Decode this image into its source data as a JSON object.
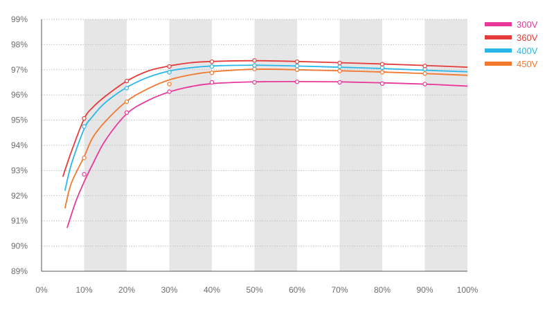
{
  "chart_data": {
    "type": "line",
    "title": "",
    "xlabel": "",
    "ylabel": "",
    "xlim": [
      0,
      100
    ],
    "ylim": [
      89,
      99
    ],
    "x_ticks": [
      "0%",
      "10%",
      "20%",
      "30%",
      "40%",
      "50%",
      "60%",
      "70%",
      "80%",
      "90%",
      "100%"
    ],
    "y_ticks": [
      "89%",
      "90%",
      "91%",
      "92%",
      "93%",
      "94%",
      "95%",
      "96%",
      "97%",
      "98%",
      "99%"
    ],
    "grid": "horizontal dotted lines, alternating gray vertical bands",
    "legend_position": "top-right",
    "series": [
      {
        "name": "300V",
        "color": "#e8389a",
        "line": [
          [
            6,
            90.72
          ],
          [
            8,
            91.75
          ],
          [
            10,
            92.55
          ],
          [
            12,
            93.25
          ],
          [
            15,
            94.2
          ],
          [
            20,
            95.25
          ],
          [
            25,
            95.78
          ],
          [
            30,
            96.12
          ],
          [
            35,
            96.33
          ],
          [
            40,
            96.45
          ],
          [
            50,
            96.52
          ],
          [
            60,
            96.53
          ],
          [
            70,
            96.52
          ],
          [
            80,
            96.48
          ],
          [
            90,
            96.43
          ],
          [
            100,
            96.35
          ]
        ],
        "markers": [
          [
            10,
            92.85
          ],
          [
            20,
            95.3
          ],
          [
            30,
            96.13
          ],
          [
            40,
            96.5
          ],
          [
            50,
            96.5
          ],
          [
            60,
            96.52
          ],
          [
            70,
            96.5
          ],
          [
            80,
            96.45
          ],
          [
            90,
            96.43
          ]
        ]
      },
      {
        "name": "360V",
        "color": "#e53a3a",
        "line": [
          [
            5,
            92.75
          ],
          [
            7,
            93.75
          ],
          [
            10,
            95.05
          ],
          [
            12,
            95.5
          ],
          [
            15,
            95.95
          ],
          [
            20,
            96.55
          ],
          [
            25,
            96.95
          ],
          [
            30,
            97.15
          ],
          [
            35,
            97.28
          ],
          [
            40,
            97.33
          ],
          [
            50,
            97.36
          ],
          [
            60,
            97.33
          ],
          [
            70,
            97.28
          ],
          [
            80,
            97.23
          ],
          [
            90,
            97.17
          ],
          [
            100,
            97.1
          ]
        ],
        "markers": [
          [
            10,
            95.07
          ],
          [
            20,
            96.55
          ],
          [
            30,
            97.13
          ],
          [
            40,
            97.32
          ],
          [
            50,
            97.37
          ],
          [
            60,
            97.32
          ],
          [
            70,
            97.27
          ],
          [
            80,
            97.22
          ],
          [
            90,
            97.15
          ]
        ]
      },
      {
        "name": "400V",
        "color": "#29b6e8",
        "line": [
          [
            5.5,
            92.2
          ],
          [
            7,
            93.25
          ],
          [
            10,
            94.65
          ],
          [
            12,
            95.15
          ],
          [
            15,
            95.7
          ],
          [
            20,
            96.3
          ],
          [
            25,
            96.7
          ],
          [
            30,
            96.95
          ],
          [
            35,
            97.08
          ],
          [
            40,
            97.15
          ],
          [
            50,
            97.18
          ],
          [
            60,
            97.15
          ],
          [
            70,
            97.1
          ],
          [
            80,
            97.05
          ],
          [
            90,
            96.98
          ],
          [
            100,
            96.92
          ]
        ],
        "markers": [
          [
            10,
            94.75
          ],
          [
            20,
            96.27
          ],
          [
            30,
            96.9
          ],
          [
            40,
            97.13
          ],
          [
            50,
            97.17
          ],
          [
            60,
            97.15
          ],
          [
            70,
            97.12
          ],
          [
            80,
            97.08
          ],
          [
            90,
            97.03
          ]
        ]
      },
      {
        "name": "450V",
        "color": "#f2782e",
        "line": [
          [
            5.5,
            91.5
          ],
          [
            7,
            92.5
          ],
          [
            10,
            93.55
          ],
          [
            12,
            94.3
          ],
          [
            15,
            94.95
          ],
          [
            20,
            95.75
          ],
          [
            25,
            96.25
          ],
          [
            30,
            96.6
          ],
          [
            35,
            96.8
          ],
          [
            40,
            96.92
          ],
          [
            50,
            97.02
          ],
          [
            60,
            97.0
          ],
          [
            70,
            96.96
          ],
          [
            80,
            96.91
          ],
          [
            90,
            96.85
          ],
          [
            100,
            96.78
          ]
        ],
        "markers": [
          [
            10,
            93.5
          ],
          [
            20,
            95.73
          ],
          [
            30,
            96.43
          ],
          [
            40,
            96.88
          ],
          [
            50,
            97.03
          ],
          [
            60,
            97.0
          ],
          [
            70,
            96.95
          ],
          [
            80,
            96.9
          ],
          [
            90,
            96.85
          ]
        ]
      }
    ]
  }
}
